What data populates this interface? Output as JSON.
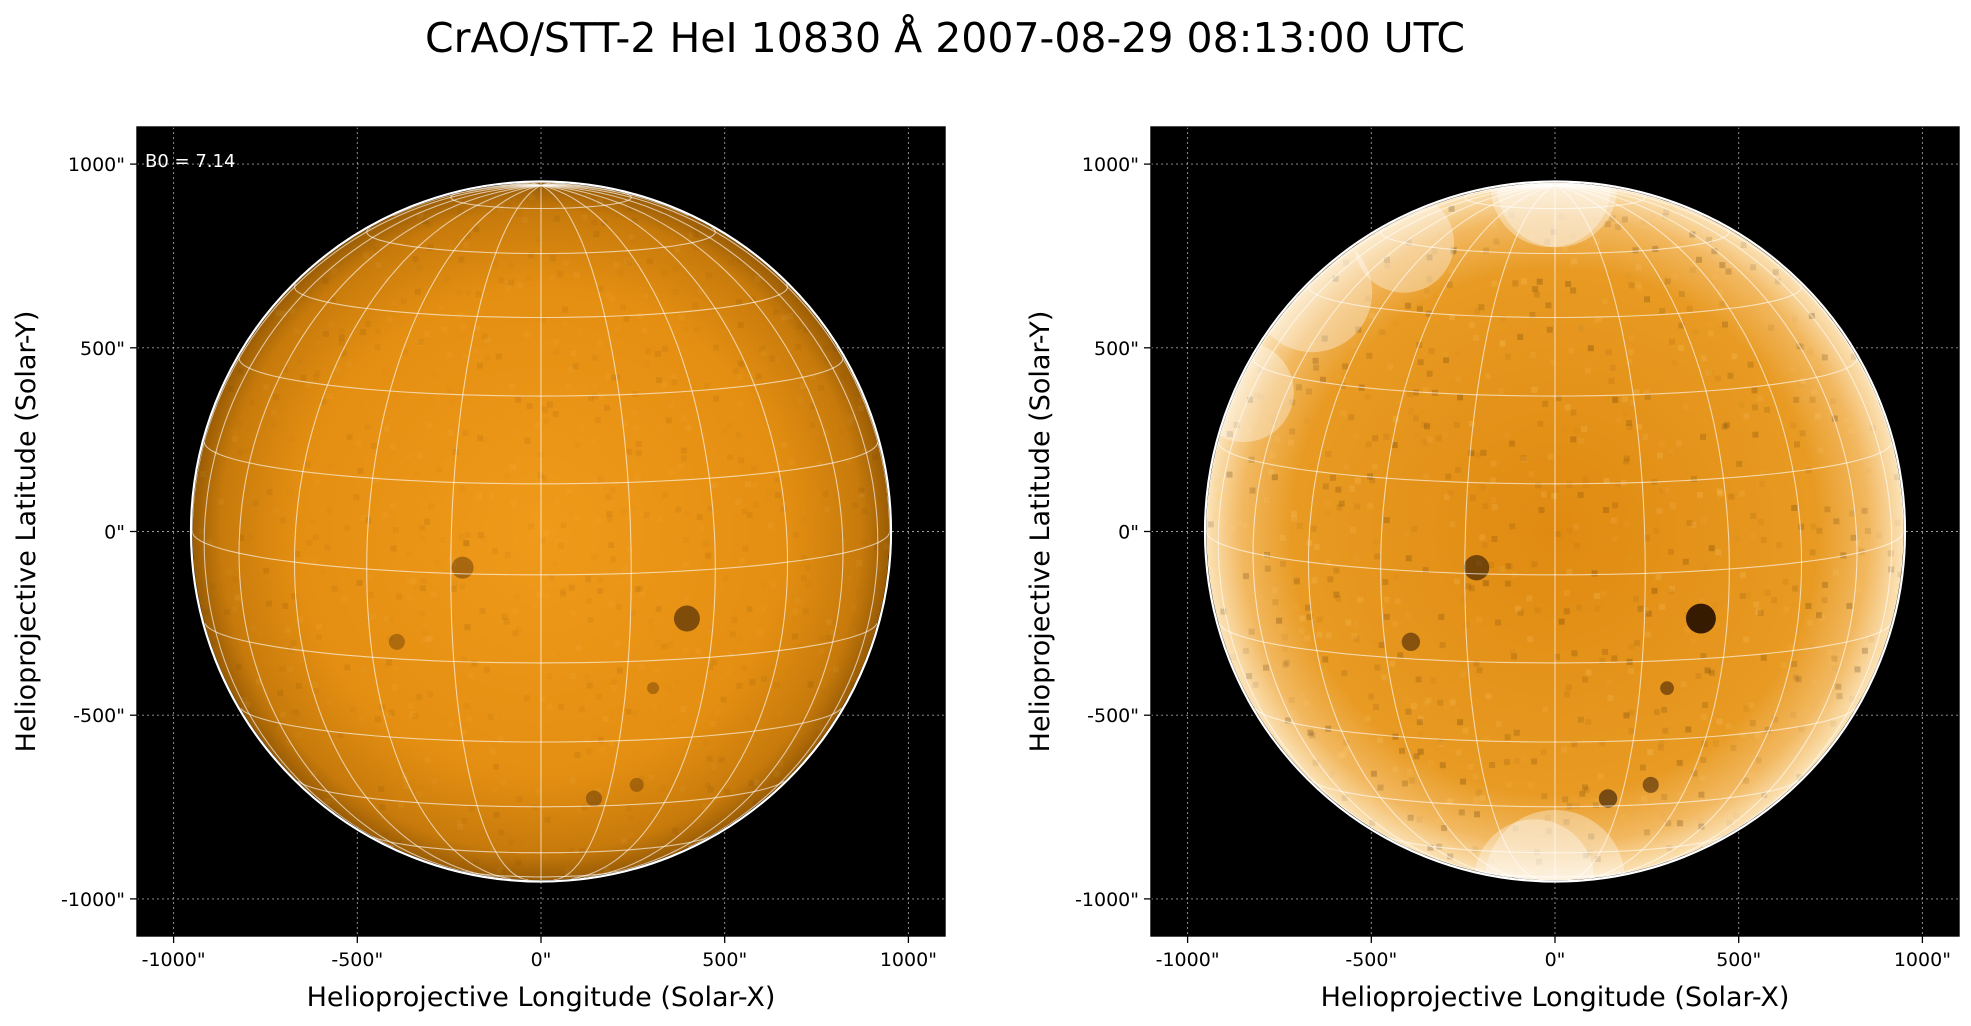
{
  "figure": {
    "title": "CrAO/STT-2 HeI 10830 Å 2007-08-29 08:13:00 UTC"
  },
  "colors": {
    "background": "#000000",
    "disk_base": "#e0900f",
    "disk_bright_left": "#ffffff",
    "disk_dark_left": "#3a1f00",
    "grid": "#ffffff"
  },
  "panels": [
    {
      "id": "left",
      "annotation": "B0 = 7.14",
      "xlabel": "Helioprojective Longitude (Solar-X)",
      "ylabel": "Helioprojective Latitude (Solar-Y)",
      "x_ticks": [
        "-1000\"",
        "-500\"",
        "0\"",
        "500\"",
        "1000\""
      ],
      "y_ticks": [
        "1000\"",
        "500\"",
        "0\"",
        "-500\"",
        "-1000\""
      ],
      "contrast": "low"
    },
    {
      "id": "right",
      "annotation": "",
      "xlabel": "Helioprojective Longitude (Solar-X)",
      "ylabel": "Helioprojective Latitude (Solar-Y)",
      "x_ticks": [
        "-1000\"",
        "-500\"",
        "0\"",
        "500\"",
        "1000\""
      ],
      "y_ticks": [
        "1000\"",
        "500\"",
        "0\"",
        "-500\"",
        "-1000\""
      ],
      "contrast": "high"
    }
  ],
  "axis": {
    "tick_values": [
      -1000,
      -500,
      0,
      500,
      1000
    ],
    "range": [
      -1100,
      1100
    ]
  },
  "sun": {
    "solar_radius_arcsec": 949,
    "b0_degrees": 7.14,
    "grid_step_degrees": 15
  }
}
